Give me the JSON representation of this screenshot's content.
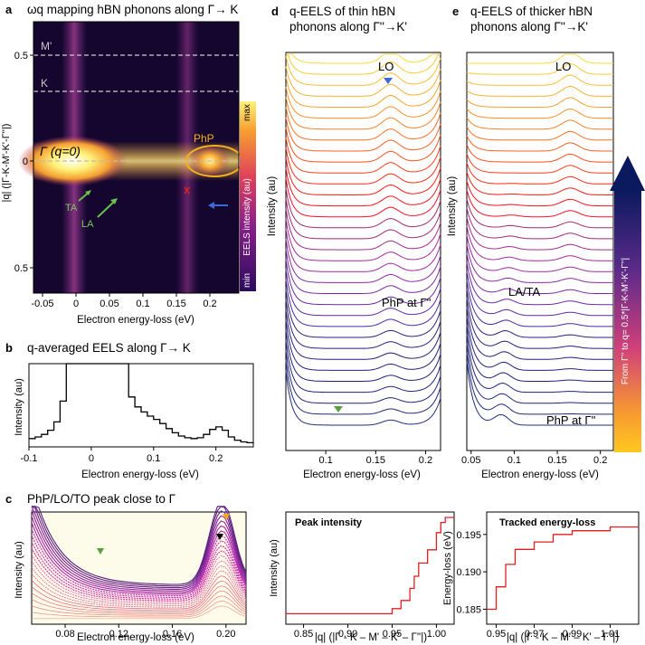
{
  "panel_a": {
    "letter": "a",
    "title": "ωq mapping hBN phonons along Γ→ K",
    "xlabel": "Electron energy-loss (eV)",
    "ylabel": "|q| (|Γ-K-M'-K'-Γ''|)",
    "xticks": [
      "-0.05",
      "0",
      "0.05",
      "0.1",
      "0.15",
      "0.2"
    ],
    "yticks": [
      "0.5",
      "0",
      "0.5"
    ],
    "labels": {
      "m": "M'",
      "k": "K",
      "gamma": "Γ (q=0)",
      "php": "PhP",
      "ta": "TA",
      "la": "LA",
      "cross": "x"
    },
    "colorbar": {
      "label": "EELS intensity (au)",
      "max": "max",
      "min": "min"
    },
    "colors": {
      "bg": "#14062e",
      "hot": "#fff27a",
      "accent": "#f0b020",
      "arrow_green": "#6ac04a",
      "arrow_blue": "#3a6ad8",
      "cross": "#e02020"
    }
  },
  "panel_b": {
    "letter": "b",
    "title": "q-averaged EELS along Γ→ K",
    "xlabel": "Electron energy-loss (eV)",
    "ylabel": "Intensity (au)",
    "xticks": [
      "-0.1",
      "0",
      "0.1",
      "0.2"
    ]
  },
  "panel_c": {
    "letter": "c",
    "title": "PhP/LO/TO peak close to Γ",
    "xlabel": "Electron energy-loss (eV)",
    "ylabel": "Intensity (au)",
    "xticks": [
      "0.08",
      "0.12",
      "0.16",
      "0.20"
    ]
  },
  "panel_c2": {
    "title": "Peak intensity",
    "xlabel": "|q| (|Γ - K – M' – K' – Γ''|)",
    "ylabel": "Intensity (au)",
    "xticks": [
      "0.85",
      "0.90",
      "0.95",
      "1.00"
    ]
  },
  "panel_c3": {
    "title": "Tracked energy-loss",
    "xlabel": "|q| (|Γ - K – M' – K' – Γ''|)",
    "ylabel": "Energy-loss (eV)",
    "xticks": [
      "0.95",
      "0.97",
      "0.99",
      "1.01"
    ],
    "yticks": [
      "0.195",
      "0.190",
      "0.185"
    ]
  },
  "panel_d": {
    "letter": "d",
    "title_line1": "q-EELS of thin hBN",
    "title_line2": "phonons along Γ''→K'",
    "xlabel": "Electron energy-loss (eV)",
    "ylabel": "Intensity (au)",
    "xticks": [
      "0.1",
      "0.15",
      "0.2"
    ],
    "labels": {
      "lo": "LO",
      "php": "PhP at Γ''"
    }
  },
  "panel_e": {
    "letter": "e",
    "title_line1": "q-EELS of thicker hBN",
    "title_line2": "phonons along Γ''→K'",
    "xlabel": "Electron energy-loss (eV)",
    "ylabel": "Intensity (au)",
    "xticks": [
      "0.05",
      "0.1",
      "0.15",
      "0.2"
    ],
    "labels": {
      "lo": "LO",
      "lata": "LA/TA",
      "php": "PhP at Γ''"
    },
    "gradient_label": "From Γ'' to q= 0.5*|Γ-K-M'-K'-Γ''|"
  },
  "chart_data": [
    {
      "type": "heatmap",
      "title": "ωq mapping hBN phonons along Γ→ K",
      "xlabel": "Electron energy-loss (eV)",
      "ylabel": "|q| (|Γ-K-M'-K'-Γ''|)",
      "xlim": [
        -0.06,
        0.24
      ],
      "ylim": [
        0.65,
        -0.6
      ],
      "features": [
        "zero-loss band at 0 eV",
        "PhP at 0.19 eV near q=0",
        "TA and LA dispersions",
        "LO band near 0.17 eV"
      ]
    },
    {
      "type": "line",
      "title": "q-averaged EELS along Γ→ K",
      "xlabel": "Electron energy-loss (eV)",
      "ylabel": "Intensity (au)",
      "xlim": [
        -0.1,
        0.26
      ],
      "x": [
        -0.1,
        -0.09,
        -0.08,
        -0.07,
        -0.06,
        -0.05,
        -0.04,
        -0.03,
        0.05,
        0.06,
        0.07,
        0.08,
        0.09,
        0.1,
        0.11,
        0.12,
        0.13,
        0.14,
        0.15,
        0.16,
        0.17,
        0.18,
        0.19,
        0.2,
        0.21,
        0.22,
        0.23,
        0.24,
        0.25,
        0.26
      ],
      "y": [
        0.1,
        0.12,
        0.15,
        0.2,
        0.3,
        0.55,
        1.0,
        1.0,
        1.0,
        0.6,
        0.48,
        0.42,
        0.37,
        0.33,
        0.28,
        0.22,
        0.17,
        0.13,
        0.11,
        0.1,
        0.11,
        0.15,
        0.21,
        0.24,
        0.2,
        0.12,
        0.08,
        0.06,
        0.05,
        0.04
      ]
    },
    {
      "type": "line",
      "title": "PhP/LO/TO peak close to Γ",
      "xlabel": "Electron energy-loss (eV)",
      "ylabel": "Intensity (au)",
      "xlim": [
        0.055,
        0.215
      ],
      "note": "family of spectra, peak near 0.195–0.20 eV"
    },
    {
      "type": "line",
      "title": "Peak intensity",
      "xlabel": "|q| (|Γ - K – M' – K' – Γ''|)",
      "ylabel": "Intensity (au)",
      "xlim": [
        0.83,
        1.02
      ],
      "x": [
        0.83,
        0.92,
        0.95,
        0.96,
        0.97,
        0.975,
        0.98,
        0.99,
        1.0,
        1.005,
        1.01,
        1.02
      ],
      "y": [
        0.05,
        0.05,
        0.1,
        0.18,
        0.3,
        0.42,
        0.55,
        0.68,
        0.85,
        0.95,
        1.0,
        1.0
      ]
    },
    {
      "type": "line",
      "title": "Tracked energy-loss",
      "xlabel": "|q| (|Γ - K – M' – K' – Γ''|)",
      "ylabel": "Energy-loss (eV)",
      "xlim": [
        0.945,
        1.025
      ],
      "ylim": [
        0.183,
        0.198
      ],
      "x": [
        0.945,
        0.95,
        0.955,
        0.96,
        0.97,
        0.98,
        0.99,
        1.0,
        1.01,
        1.02,
        1.025
      ],
      "y": [
        0.185,
        0.188,
        0.191,
        0.193,
        0.194,
        0.195,
        0.1955,
        0.1955,
        0.196,
        0.196,
        0.196
      ]
    },
    {
      "type": "line",
      "title": "q-EELS of thin hBN phonons along Γ''→K'",
      "xlabel": "Electron energy-loss (eV)",
      "ylabel": "Intensity (au)",
      "xlim": [
        0.06,
        0.215
      ],
      "note": "waterfall of ~35 spectra, LO peak near 0.165 eV"
    },
    {
      "type": "line",
      "title": "q-EELS of thicker hBN phonons along Γ''→K'",
      "xlabel": "Electron energy-loss (eV)",
      "ylabel": "Intensity (au)",
      "xlim": [
        0.045,
        0.215
      ],
      "note": "waterfall of ~35 spectra, LO near 0.165 eV, LA/TA near 0.1 eV"
    }
  ]
}
